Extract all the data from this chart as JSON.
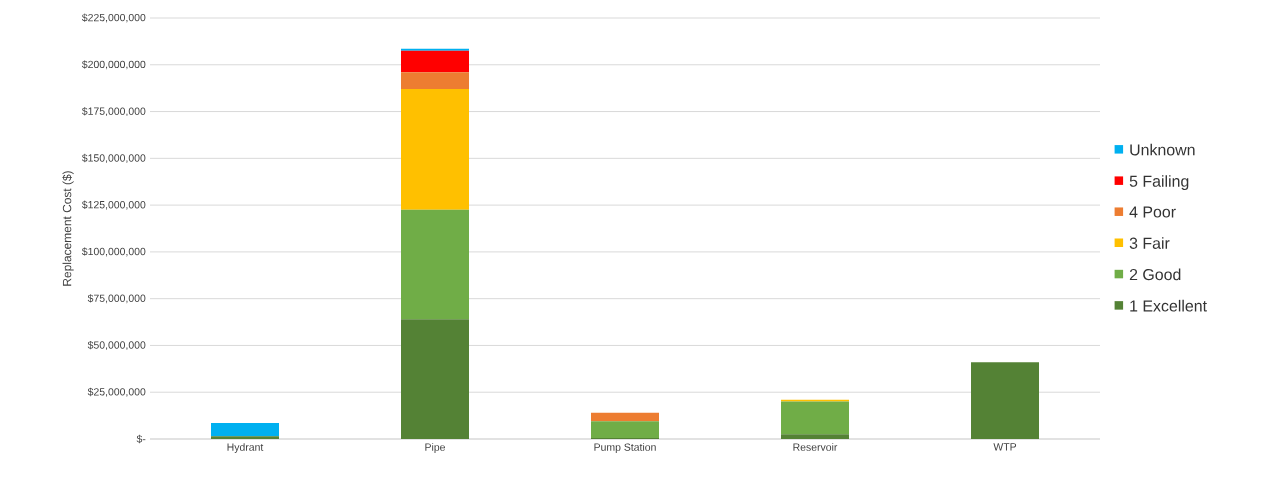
{
  "chart_data": {
    "type": "bar",
    "stacked": true,
    "ylabel": "Replacement Cost ($)",
    "categories": [
      "Hydrant",
      "Pipe",
      "Pump Station",
      "Reservoir",
      "WTP"
    ],
    "series": [
      {
        "name": "1 Excellent",
        "color": "#548235",
        "values": [
          1500000,
          64000000,
          500000,
          2500000,
          41000000
        ]
      },
      {
        "name": "2 Good",
        "color": "#70ad47",
        "values": [
          0,
          58500000,
          9000000,
          17500000,
          0
        ]
      },
      {
        "name": "3 Fair",
        "color": "#ffc000",
        "values": [
          0,
          64500000,
          0,
          1000000,
          0
        ]
      },
      {
        "name": "4 Poor",
        "color": "#ed7d31",
        "values": [
          0,
          9000000,
          4500000,
          0,
          0
        ]
      },
      {
        "name": "5 Failing",
        "color": "#ff0000",
        "values": [
          0,
          11500000,
          0,
          0,
          0
        ]
      },
      {
        "name": "Unknown",
        "color": "#00b0f0",
        "values": [
          7000000,
          1000000,
          0,
          0,
          0
        ]
      }
    ],
    "ylim": [
      0,
      225000000
    ],
    "yticks": [
      {
        "value": 0,
        "label": "$-"
      },
      {
        "value": 25000000,
        "label": "$25,000,000"
      },
      {
        "value": 50000000,
        "label": "$50,000,000"
      },
      {
        "value": 75000000,
        "label": "$75,000,000"
      },
      {
        "value": 100000000,
        "label": "$100,000,000"
      },
      {
        "value": 125000000,
        "label": "$125,000,000"
      },
      {
        "value": 150000000,
        "label": "$150,000,000"
      },
      {
        "value": 175000000,
        "label": "$175,000,000"
      },
      {
        "value": 200000000,
        "label": "$200,000,000"
      },
      {
        "value": 225000000,
        "label": "$225,000,000"
      }
    ],
    "grid": "y",
    "legend": "right"
  }
}
